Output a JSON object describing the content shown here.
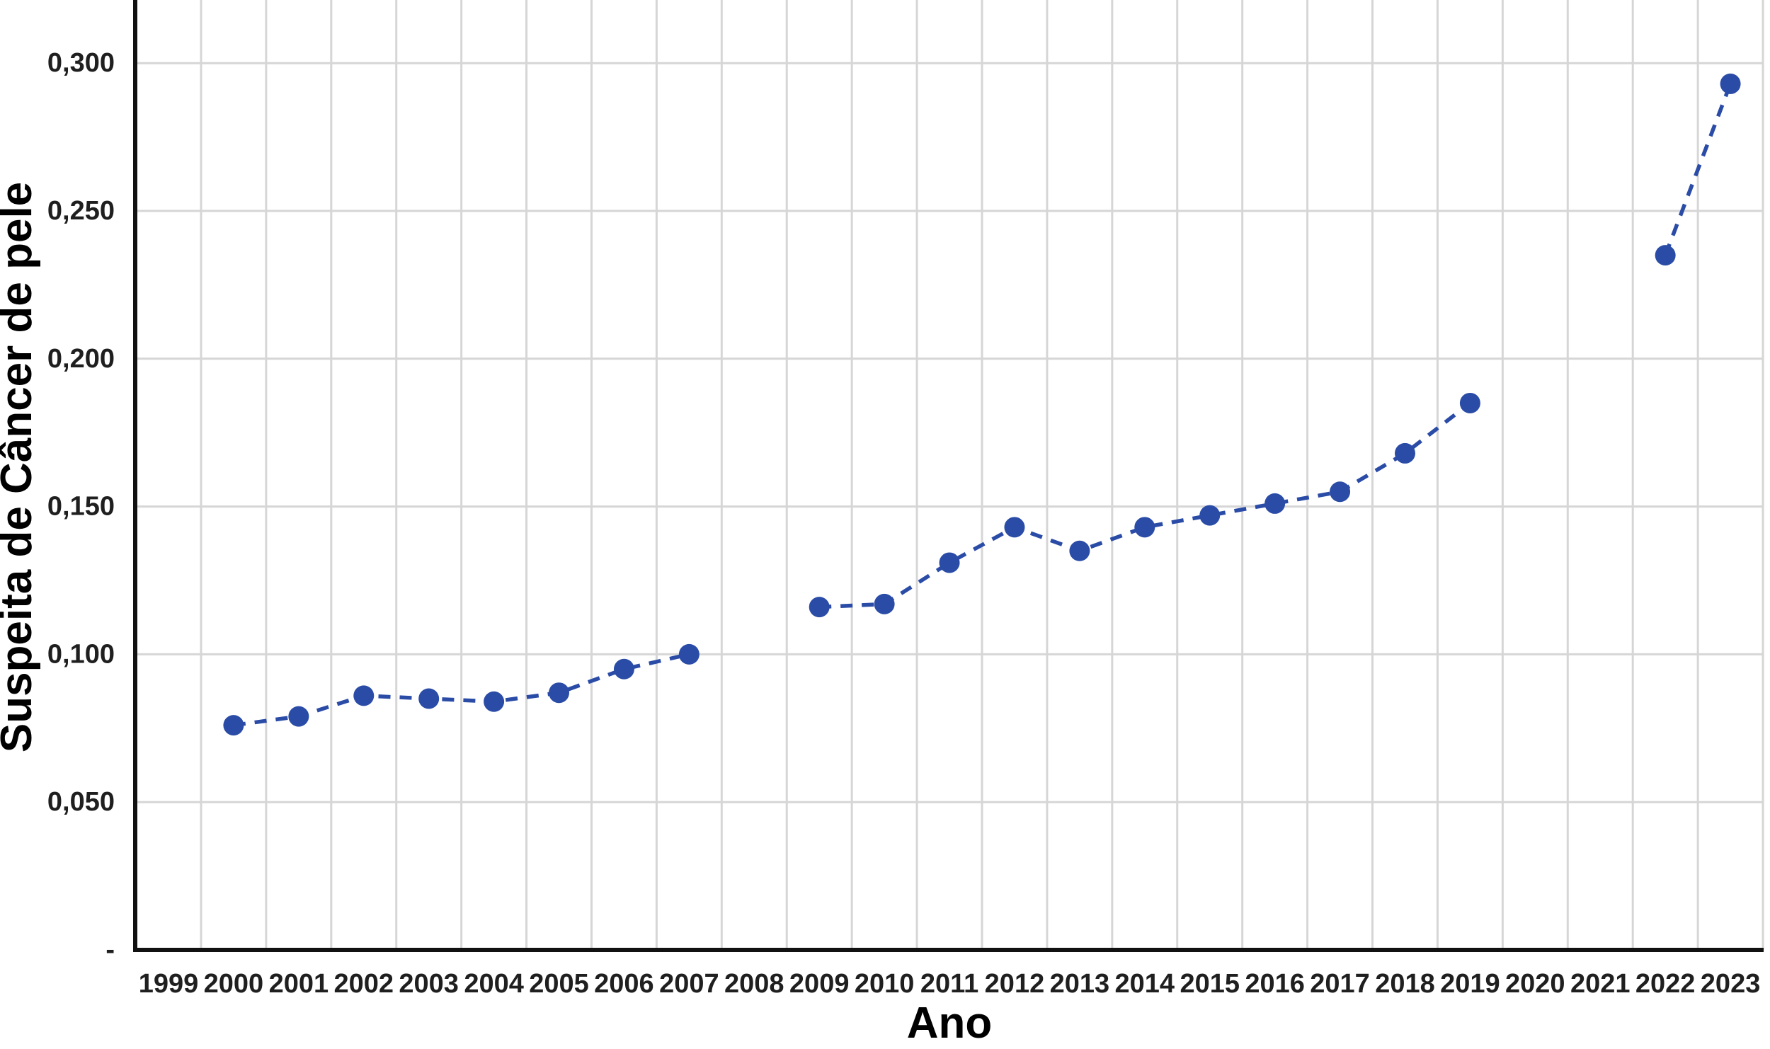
{
  "chart_data": {
    "type": "line",
    "title": "",
    "xlabel": "Ano",
    "ylabel": "Suspeita de Câncer de pele",
    "legend_position": "none",
    "grid": true,
    "line_style": "dashed",
    "marker": "circle",
    "colors": {
      "series": "#2a4ca6",
      "grid": "#d6d6d6",
      "axis": "#111111",
      "text": "#1f1f1f",
      "background": "#ffffff"
    },
    "x_categories": [
      "1999",
      "2000",
      "2001",
      "2002",
      "2003",
      "2004",
      "2005",
      "2006",
      "2007",
      "2008",
      "2009",
      "2010",
      "2011",
      "2012",
      "2013",
      "2014",
      "2015",
      "2016",
      "2017",
      "2018",
      "2019",
      "2020",
      "2021",
      "2022",
      "2023"
    ],
    "series": [
      {
        "name": "Suspeita de Câncer de pele",
        "values": [
          null,
          0.076,
          0.079,
          0.086,
          0.085,
          0.084,
          0.087,
          0.095,
          0.1,
          null,
          0.116,
          0.117,
          0.131,
          0.143,
          0.135,
          0.143,
          0.147,
          0.151,
          0.155,
          0.168,
          0.185,
          null,
          null,
          0.235,
          0.293
        ]
      }
    ],
    "y_axis": {
      "range": [
        0,
        0.321
      ],
      "ticks": [
        {
          "value": 0.3,
          "label": "0,300"
        },
        {
          "value": 0.25,
          "label": "0,250"
        },
        {
          "value": 0.2,
          "label": "0,200"
        },
        {
          "value": 0.15,
          "label": "0,150"
        },
        {
          "value": 0.1,
          "label": "0,100"
        },
        {
          "value": 0.05,
          "label": "0,050"
        },
        {
          "value": 0.0,
          "label": "-"
        }
      ]
    }
  }
}
